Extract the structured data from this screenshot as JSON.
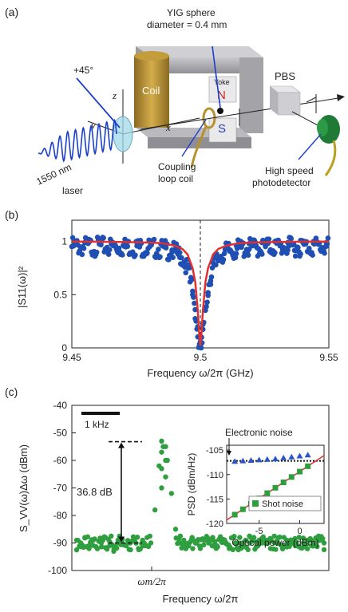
{
  "panel_a": {
    "tag": "(a)",
    "yig_line1": "YIG sphere",
    "yig_line2": "diameter = 0.4 mm",
    "angle": "+45°",
    "coil": "Coil",
    "yoke": "Yoke",
    "north": "N",
    "south": "S",
    "pbs": "PBS",
    "axis_z": "z",
    "axis_y": "y",
    "axis_x": "x",
    "laser_line1": "1550 nm",
    "laser_line2": "laser",
    "coupling_line1": "Coupling",
    "coupling_line2": "loop coil",
    "detector_line1": "High speed",
    "detector_line2": "photodetector",
    "colors": {
      "coil": "#b8912f",
      "yoke": "#a9a9ad",
      "north": "#cc2222",
      "south": "#2a3fa6",
      "detector": "#1f7a35",
      "beam": "#1a3fc8"
    }
  },
  "panel_b": {
    "tag": "(b)",
    "chart_data": {
      "type": "scatter",
      "xlabel": "Frequency ω/2π (GHz)",
      "ylabel": "|S11(ω)|²",
      "xlim": [
        9.45,
        9.55
      ],
      "ylim": [
        0,
        1.2
      ],
      "xticks": [
        "9.45",
        "9.5",
        "9.55"
      ],
      "yticks": [
        "0",
        "0.5",
        "1"
      ],
      "xtick_values": [
        9.45,
        9.5,
        9.55
      ],
      "ytick_values": [
        0,
        0.5,
        1
      ],
      "dashed_line_x": 9.5,
      "series": [
        {
          "kind": "points",
          "color": "#1f4fb3",
          "x": [
            9.451,
            9.456,
            9.461,
            9.466,
            9.471,
            9.476,
            9.481,
            9.486,
            9.489,
            9.492,
            9.494,
            9.496,
            9.497,
            9.498,
            9.499,
            9.4995,
            9.5,
            9.5005,
            9.501,
            9.502,
            9.503,
            9.504,
            9.506,
            9.508,
            9.511,
            9.514,
            9.519,
            9.524,
            9.529,
            9.534,
            9.539,
            9.544,
            9.549
          ],
          "y": [
            1.0,
            0.99,
            1.01,
            0.99,
            1.0,
            0.98,
            0.97,
            0.95,
            0.92,
            0.85,
            0.76,
            0.62,
            0.5,
            0.36,
            0.2,
            0.1,
            0.02,
            0.1,
            0.22,
            0.38,
            0.52,
            0.63,
            0.78,
            0.86,
            0.93,
            0.96,
            0.98,
            0.99,
            1.0,
            0.99,
            1.01,
            1.0,
            0.99
          ]
        },
        {
          "kind": "fit",
          "color": "#e03030",
          "x": [
            9.45,
            9.46,
            9.47,
            9.48,
            9.485,
            9.49,
            9.493,
            9.495,
            9.497,
            9.498,
            9.499,
            9.4995,
            9.5,
            9.5005,
            9.501,
            9.502,
            9.503,
            9.505,
            9.507,
            9.51,
            9.515,
            9.52,
            9.53,
            9.54,
            9.55
          ],
          "y": [
            1.0,
            0.998,
            0.996,
            0.99,
            0.985,
            0.96,
            0.93,
            0.88,
            0.75,
            0.62,
            0.35,
            0.15,
            0.02,
            0.15,
            0.35,
            0.62,
            0.75,
            0.88,
            0.93,
            0.96,
            0.985,
            0.99,
            0.996,
            0.998,
            1.0
          ]
        }
      ]
    }
  },
  "panel_c": {
    "tag": "(c)",
    "chart_data": {
      "type": "scatter",
      "xlabel": "Frequency ω/2π",
      "ylabel": "S_VV(ω)Δω (dBm)",
      "ylim": [
        -100,
        -40
      ],
      "yticks": [
        "-40",
        "-50",
        "-60",
        "-70",
        "-80",
        "-90",
        "-100"
      ],
      "ytick_values": [
        -40,
        -50,
        -60,
        -70,
        -80,
        -90,
        -100
      ],
      "xtick_label": "ωm/2π",
      "scale_bar": "1 kHz",
      "annotation": "36.8 dB",
      "peak_level": -53.2,
      "floor_level": -90,
      "series": [
        {
          "kind": "points",
          "color": "#2e9e3e",
          "x": [
            0,
            1,
            2,
            3,
            4,
            5,
            6,
            7,
            8,
            9,
            10,
            11,
            12,
            13,
            14,
            15,
            16,
            17,
            18,
            19,
            20,
            21,
            22,
            23,
            24,
            25,
            26,
            27,
            28,
            29,
            30,
            31,
            32,
            33,
            34,
            35,
            36,
            37,
            38,
            39,
            40,
            41,
            42,
            43,
            44,
            45,
            46,
            47,
            48,
            49,
            50,
            51,
            52,
            53,
            54,
            55,
            56,
            57,
            58,
            59,
            60
          ],
          "y": [
            -89,
            -90,
            -88,
            -91,
            -89,
            -92,
            -90,
            -88,
            -91,
            -93,
            -90,
            -89,
            -91,
            -90,
            -88,
            -92,
            -89,
            -91,
            -90,
            -78,
            -62,
            -55,
            -60,
            -72,
            -85,
            -90,
            -89,
            -91,
            -88,
            -90,
            -92,
            -89,
            -90,
            -88,
            -91,
            -89,
            -90,
            -92,
            -88,
            -90,
            -91,
            -89,
            -90,
            -88,
            -91,
            -90,
            -89,
            -92,
            -90,
            -88,
            -91,
            -89,
            -90,
            -91,
            -88,
            -90,
            -89,
            -91,
            -90,
            -89,
            -90
          ]
        }
      ]
    },
    "inset": {
      "chart_data": {
        "type": "scatter",
        "xlabel": "Optical power (dBm)",
        "ylabel": "PSD (dBm/Hz)",
        "xlim": [
          -9,
          3
        ],
        "ylim": [
          -120,
          -104
        ],
        "xticks": [
          "-5",
          "0"
        ],
        "yticks": [
          "-105",
          "-110",
          "-115",
          "-120"
        ],
        "xtick_values": [
          -5,
          0
        ],
        "ytick_values": [
          -105,
          -110,
          -115,
          -120
        ],
        "electronic_noise_level": -107.2,
        "series": [
          {
            "name": "Shot noise",
            "kind": "squares",
            "color": "#2e9e3e",
            "x": [
              -8,
              -7,
              -6,
              -5,
              -4,
              -3,
              -2,
              -1,
              0,
              1
            ],
            "y": [
              -118.2,
              -117.1,
              -116.0,
              -114.9,
              -113.8,
              -112.7,
              -111.6,
              -110.5,
              -109.4,
              -108.3
            ]
          },
          {
            "kind": "triangles",
            "color": "#2a55c8",
            "x": [
              -8,
              -7,
              -6,
              -5,
              -4,
              -3,
              -2,
              -1,
              0,
              1
            ],
            "y": [
              -107.3,
              -107.2,
              -107.1,
              -107.0,
              -106.9,
              -106.8,
              -106.6,
              -106.4,
              -106.2,
              -106.0
            ]
          },
          {
            "kind": "fit",
            "color": "#e03030",
            "x": [
              -9,
              3
            ],
            "y": [
              -119.3,
              -106.1
            ]
          }
        ],
        "annotation": "Electronic noise"
      }
    }
  }
}
